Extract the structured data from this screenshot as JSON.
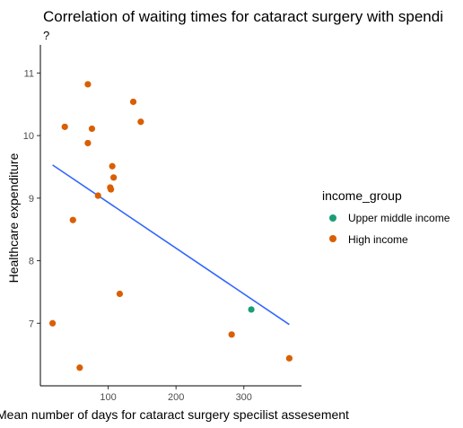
{
  "chart_data": {
    "type": "scatter",
    "title": "Correlation of waiting times for cataract surgery with spendi",
    "subtitle": "?",
    "xlabel": "Mean number of days for cataract surgery specilist assesement",
    "ylabel": "Healthcare expenditure",
    "xlim": [
      0,
      385
    ],
    "ylim": [
      6.0,
      11.45
    ],
    "xticks": [
      100,
      200,
      300
    ],
    "yticks": [
      7,
      8,
      9,
      10,
      11
    ],
    "grid": false,
    "legend": {
      "title": "income_group",
      "position": "right",
      "entries": [
        {
          "label": "Upper middle income",
          "color": "#1b9e77"
        },
        {
          "label": "High income",
          "color": "#d95f02"
        }
      ]
    },
    "series": [
      {
        "name": "Upper middle income",
        "color": "#1b9e77",
        "points": [
          [
            311,
            7.22
          ]
        ]
      },
      {
        "name": "High income",
        "color": "#d95f02",
        "points": [
          [
            70,
            10.82
          ],
          [
            137,
            10.54
          ],
          [
            36,
            10.14
          ],
          [
            76,
            10.11
          ],
          [
            148,
            10.22
          ],
          [
            70,
            9.88
          ],
          [
            106,
            9.51
          ],
          [
            108,
            9.33
          ],
          [
            103,
            9.17
          ],
          [
            104,
            9.14
          ],
          [
            85,
            9.04
          ],
          [
            48,
            8.65
          ],
          [
            117,
            7.47
          ],
          [
            18,
            7.0
          ],
          [
            282,
            6.82
          ],
          [
            367,
            6.44
          ],
          [
            58,
            6.29
          ]
        ]
      }
    ],
    "trend_line": {
      "color": "#3366ff",
      "start": [
        18,
        9.53
      ],
      "end": [
        367,
        6.98
      ]
    }
  }
}
